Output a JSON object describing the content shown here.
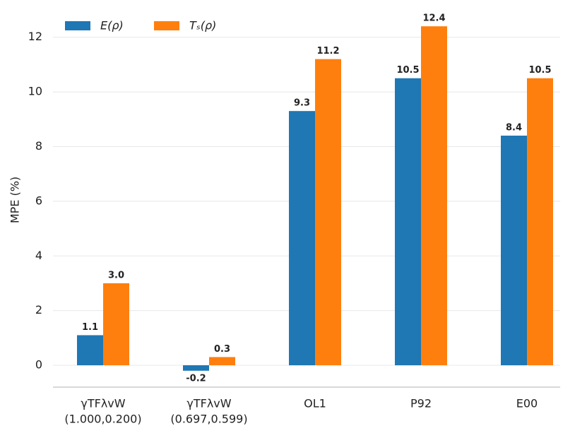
{
  "chart_data": {
    "type": "bar",
    "y_label": "MPE (%)",
    "categories": [
      [
        "γTFλvW",
        "(1.000,0.200)"
      ],
      [
        "γTFλvW",
        "(0.697,0.599)"
      ],
      [
        "OL1"
      ],
      [
        "P92"
      ],
      [
        "E00"
      ]
    ],
    "series": [
      {
        "name": "E(ρ)",
        "color": "#1f77b4",
        "values": [
          1.1,
          -0.2,
          9.3,
          10.5,
          8.4
        ],
        "value_labels": [
          "1.1",
          "-0.2",
          "9.3",
          "10.5",
          "8.4"
        ]
      },
      {
        "name": "Tₛ(ρ)",
        "color": "#ff7f0e",
        "values": [
          3.0,
          0.3,
          11.2,
          12.4,
          10.5
        ],
        "value_labels": [
          "3.0",
          "0.3",
          "11.2",
          "12.4",
          "10.5"
        ]
      }
    ],
    "ylim": [
      -0.8,
      13
    ],
    "yticks": [
      0,
      2,
      4,
      6,
      8,
      10,
      12
    ],
    "grid": true,
    "legend": "upper left"
  }
}
